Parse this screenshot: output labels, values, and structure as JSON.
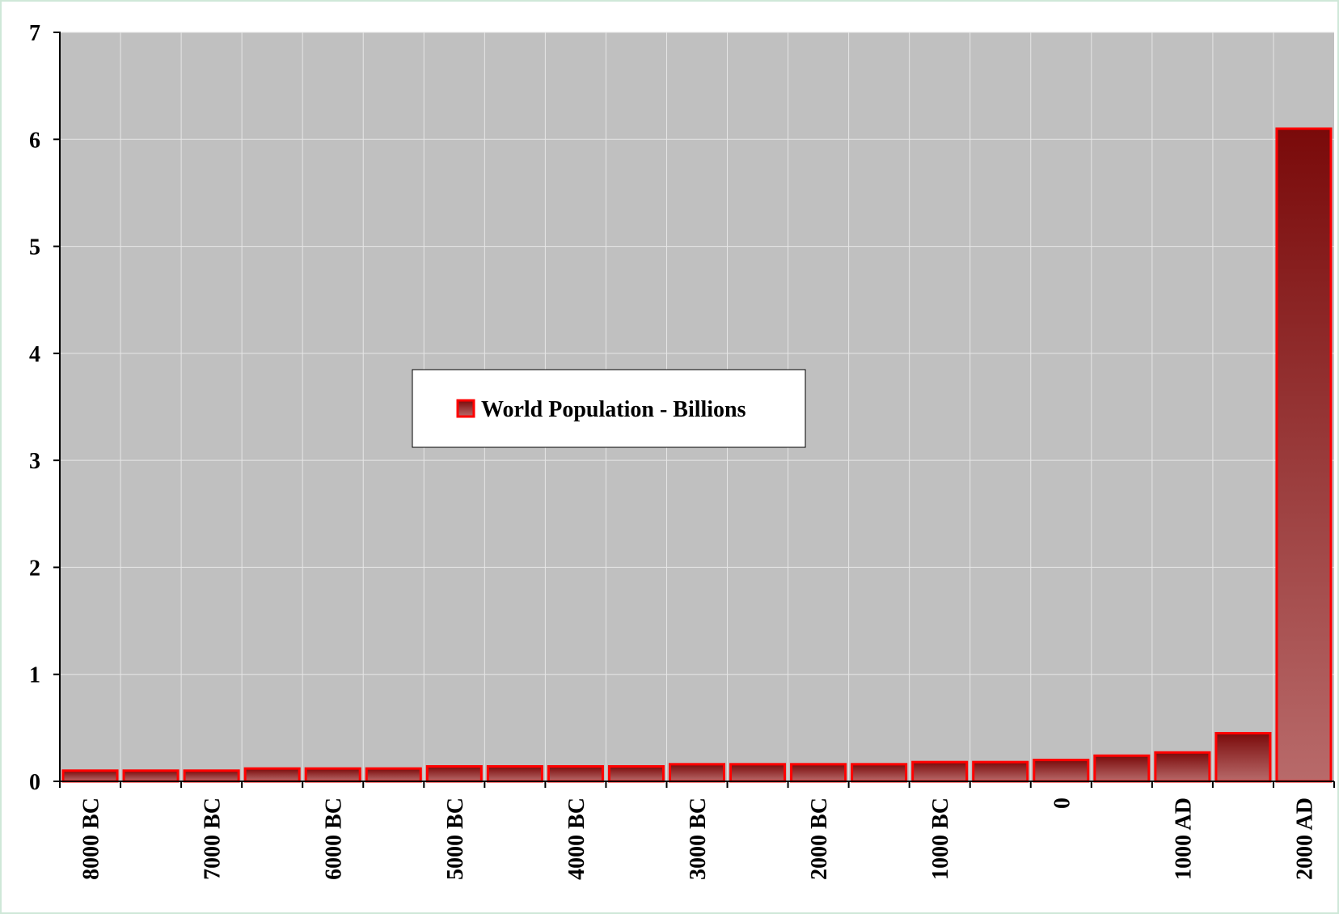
{
  "chart_data": {
    "type": "bar",
    "title": "",
    "xlabel": "",
    "ylabel": "",
    "ylim": [
      0,
      7
    ],
    "yticks": [
      0,
      1,
      2,
      3,
      4,
      5,
      6,
      7
    ],
    "grid": true,
    "legend_position": "center",
    "categories": [
      "8000 BC",
      "",
      "7000 BC",
      "",
      "6000 BC",
      "",
      "5000 BC",
      "",
      "4000 BC",
      "",
      "3000 BC",
      "",
      "2000 BC",
      "",
      "1000 BC",
      "",
      "0",
      "",
      "1000 AD",
      "",
      "2000 AD"
    ],
    "series": [
      {
        "name": "World Population - Billions",
        "values": [
          0.1,
          0.1,
          0.1,
          0.12,
          0.12,
          0.12,
          0.14,
          0.14,
          0.14,
          0.14,
          0.16,
          0.16,
          0.16,
          0.16,
          0.18,
          0.18,
          0.2,
          0.24,
          0.27,
          0.45,
          6.1
        ]
      }
    ],
    "colors": {
      "plot_background": "#c0c0c0",
      "bar_border": "#ff0000",
      "bar_top": "#7a0a0a",
      "bar_bottom": "#b86a6a",
      "gridline": "#e6e6e6"
    }
  }
}
